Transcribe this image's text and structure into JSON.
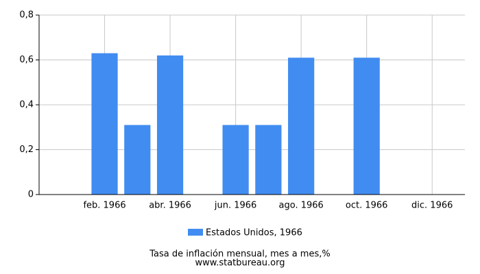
{
  "chart_data": {
    "type": "bar",
    "categories": [
      null,
      "feb. 1966",
      null,
      "abr. 1966",
      null,
      "jun. 1966",
      null,
      "ago. 1966",
      null,
      "oct. 1966",
      null,
      "dic. 1966"
    ],
    "series": [
      {
        "name": "Estados Unidos, 1966",
        "color": "#418cf0",
        "values": [
          0,
          0.63,
          0.31,
          0.62,
          0,
          0.31,
          0.31,
          0.61,
          0,
          0.61,
          0,
          0
        ]
      }
    ],
    "ylim": [
      0,
      0.8
    ],
    "yticks": [
      0,
      {
        "value": 0.2,
        "label": "0,2"
      },
      {
        "value": 0.4,
        "label": "0,4"
      },
      {
        "value": 0.6,
        "label": "0,6"
      },
      {
        "value": 0.8,
        "label": "0,8"
      }
    ],
    "grid": true,
    "legend": "bottom",
    "caption": "Tasa de inflación mensual, mes a mes,%",
    "source": "www.statbureau.org"
  }
}
